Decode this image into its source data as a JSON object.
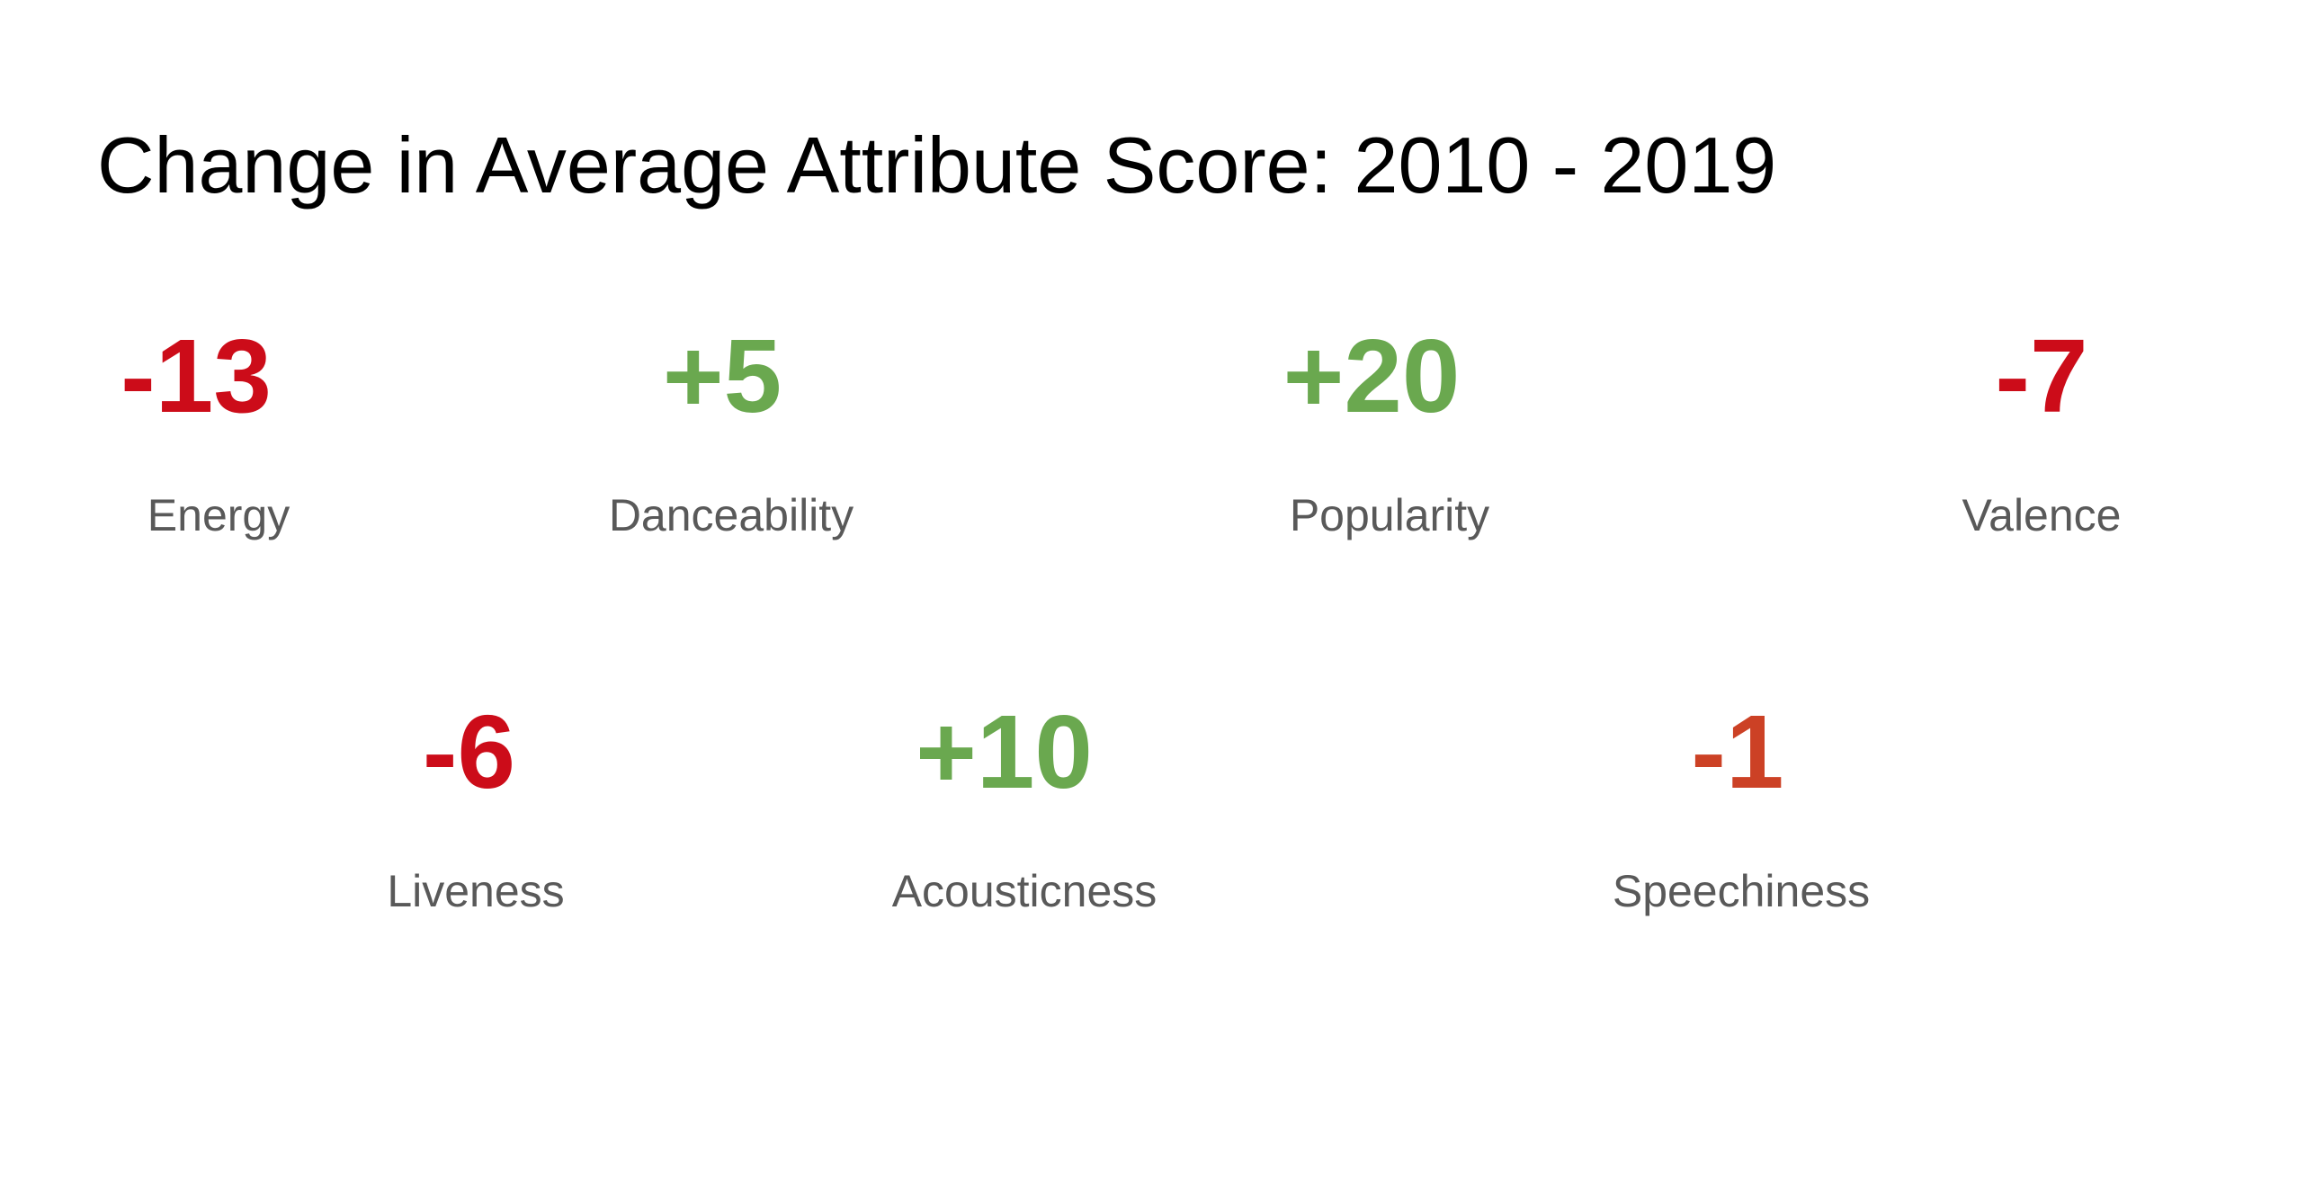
{
  "title": "Change in Average Attribute Score: 2010 - 2019",
  "colors": {
    "positive": "#6aa84f",
    "negative": "#cc0c19",
    "negative_soft": "#cc4125",
    "label": "#595959"
  },
  "stats": {
    "energy": {
      "value": "-13",
      "label": "Energy"
    },
    "danceability": {
      "value": "+5",
      "label": "Danceability"
    },
    "popularity": {
      "value": "+20",
      "label": "Popularity"
    },
    "valence": {
      "value": "-7",
      "label": "Valence"
    },
    "liveness": {
      "value": "-6",
      "label": "Liveness"
    },
    "acousticness": {
      "value": "+10",
      "label": "Acousticness"
    },
    "speechiness": {
      "value": "-1",
      "label": "Speechiness"
    }
  }
}
